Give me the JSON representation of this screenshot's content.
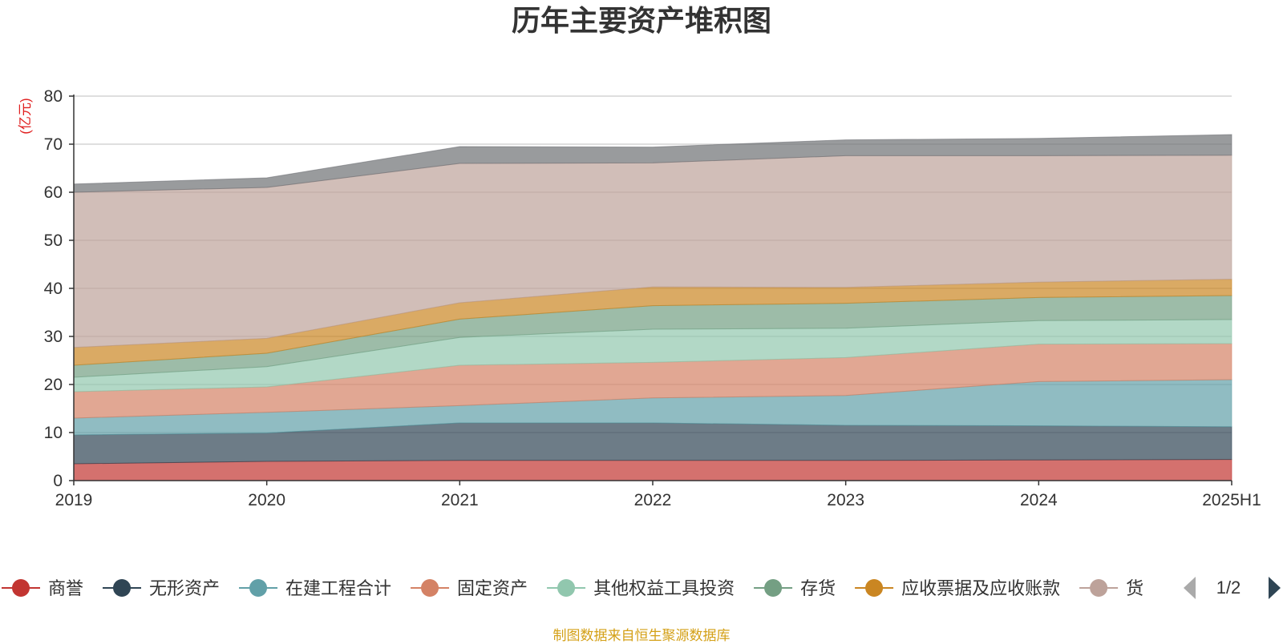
{
  "chart_data": {
    "type": "area",
    "stacked": true,
    "title": "历年主要资产堆积图",
    "ylabel": "(亿元)",
    "ylim": [
      0,
      80
    ],
    "yticks": [
      0,
      10,
      20,
      30,
      40,
      50,
      60,
      70,
      80
    ],
    "grid": true,
    "x": [
      "2019",
      "2020",
      "2021",
      "2022",
      "2023",
      "2024",
      "2025H1"
    ],
    "series": [
      {
        "name": "商誉",
        "color": "#c23531",
        "values": [
          3.5,
          4.0,
          4.2,
          4.2,
          4.2,
          4.3,
          4.4
        ]
      },
      {
        "name": "无形资产",
        "color": "#2f4554",
        "values": [
          6.0,
          5.9,
          7.8,
          7.8,
          7.3,
          7.1,
          6.8
        ]
      },
      {
        "name": "在建工程合计",
        "color": "#61a0a8",
        "values": [
          3.5,
          4.3,
          3.6,
          5.2,
          6.2,
          9.2,
          9.8
        ]
      },
      {
        "name": "固定资产",
        "color": "#d48265",
        "values": [
          5.5,
          5.3,
          8.4,
          7.4,
          7.9,
          7.8,
          7.5
        ]
      },
      {
        "name": "其他权益工具投资",
        "color": "#91c7ae",
        "values": [
          3.0,
          4.2,
          5.8,
          6.9,
          6.1,
          4.9,
          5.0
        ]
      },
      {
        "name": "存货",
        "color": "#749f83",
        "values": [
          2.5,
          2.8,
          3.8,
          4.9,
          5.2,
          4.8,
          5.0
        ]
      },
      {
        "name": "应收票据及应收账款",
        "color": "#ca8622",
        "values": [
          3.7,
          3.1,
          3.4,
          3.9,
          3.3,
          3.2,
          3.4
        ]
      },
      {
        "name": "货币资金",
        "color": "#bda29a",
        "values": [
          32.3,
          31.4,
          29.0,
          25.8,
          27.4,
          26.3,
          25.8
        ]
      },
      {
        "name": "",
        "color": "#6e7074",
        "values": [
          1.7,
          2.0,
          3.5,
          3.3,
          3.3,
          3.6,
          4.3
        ]
      }
    ]
  },
  "legend": {
    "items": [
      {
        "label": "商誉",
        "color": "#c23531"
      },
      {
        "label": "无形资产",
        "color": "#2f4554"
      },
      {
        "label": "在建工程合计",
        "color": "#61a0a8"
      },
      {
        "label": "固定资产",
        "color": "#d48265"
      },
      {
        "label": "其他权益工具投资",
        "color": "#91c7ae"
      },
      {
        "label": "存货",
        "color": "#749f83"
      },
      {
        "label": "应收票据及应收账款",
        "color": "#ca8622"
      },
      {
        "label": "货",
        "color": "#bda29a"
      }
    ],
    "page": "1/2",
    "prev_icon": "triangle-left-icon",
    "next_icon": "triangle-right-icon"
  },
  "footer": {
    "source": "制图数据来自恒生聚源数据库"
  }
}
